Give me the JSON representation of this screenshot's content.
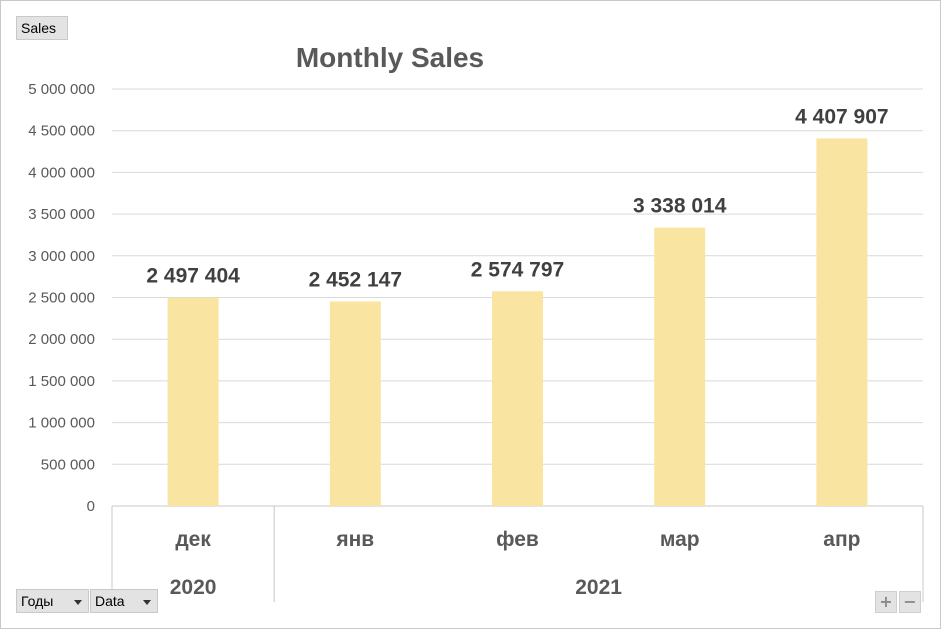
{
  "filter_field": {
    "label": "Sales"
  },
  "row_fields": [
    {
      "label": "Годы"
    },
    {
      "label": "Data"
    }
  ],
  "zoom": {
    "expand": "+",
    "collapse": "−"
  },
  "chart_data": {
    "type": "bar",
    "title": "Monthly Sales",
    "categories": [
      "дек",
      "янв",
      "фев",
      "мар",
      "апр"
    ],
    "groups": [
      {
        "label": "2020",
        "count": 1
      },
      {
        "label": "2021",
        "count": 4
      }
    ],
    "series": [
      {
        "values": [
          2497404,
          2452147,
          2574797,
          3338014,
          4407907
        ],
        "color": "#f9e4a2"
      }
    ],
    "data_labels": [
      "2 497 404",
      "2 452 147",
      "2 574 797",
      "3 338 014",
      "4 407 907"
    ],
    "yticks": [
      "0",
      "500 000",
      "1 000 000",
      "1 500 000",
      "2 000 000",
      "2 500 000",
      "3 000 000",
      "3 500 000",
      "4 000 000",
      "4 500 000",
      "5 000 000"
    ],
    "ylim": [
      0,
      5000000
    ],
    "grid": true,
    "colors": {
      "grid": "#d9d9d9",
      "text": "#595959",
      "title": "#595959",
      "axis": "#c8c8c8"
    }
  }
}
